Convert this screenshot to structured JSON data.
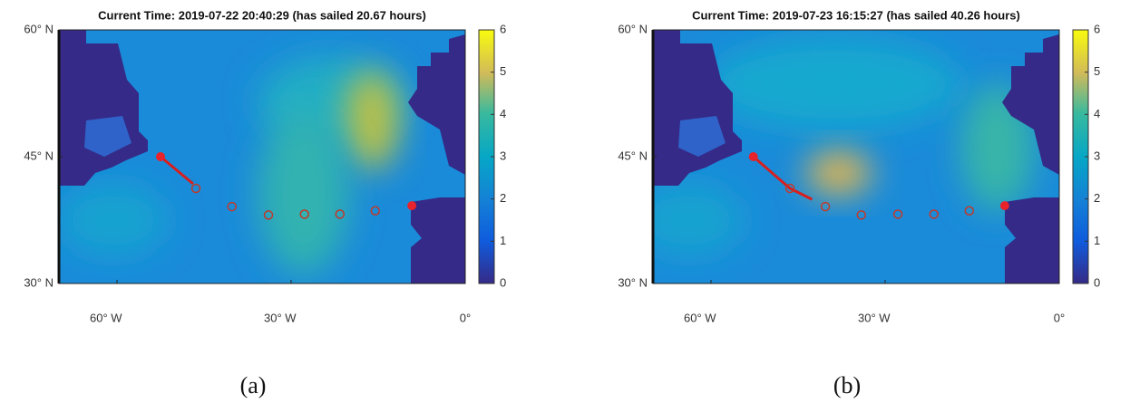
{
  "chart_data": [
    {
      "type": "route-map",
      "title": "Current Time: 2019-07-22 20:40:29 (has sailed 20.67 hours)",
      "xlim": [
        -70,
        0
      ],
      "ylim": [
        30,
        60
      ],
      "xticks": [
        {
          "value": -60,
          "label": "60° W"
        },
        {
          "value": -30,
          "label": "30° W"
        },
        {
          "value": 0,
          "label": "0°"
        }
      ],
      "yticks": [
        {
          "value": 30,
          "label": "30° N"
        },
        {
          "value": 45,
          "label": "45° N"
        },
        {
          "value": 60,
          "label": "60° N"
        }
      ],
      "clim": [
        0,
        6
      ],
      "cticks": [
        0,
        1,
        2,
        3,
        4,
        5,
        6
      ],
      "route": {
        "x": [
          -52.5,
          -46.4,
          -40.2,
          -33.9,
          -27.7,
          -21.6,
          -15.5,
          -9.2
        ],
        "y": [
          45,
          41.25,
          39.1,
          38.1,
          38.2,
          38.2,
          38.6,
          39.2
        ]
      },
      "sailed": {
        "x": [
          -52.5,
          -46.9
        ],
        "y": [
          45,
          41.8
        ]
      },
      "color": "#e8232b",
      "caption": "(a)"
    },
    {
      "type": "route-map",
      "title": "Current Time: 2019-07-23 16:15:27 (has sailed 40.26 hours)",
      "xlim": [
        -70,
        0
      ],
      "ylim": [
        30,
        60
      ],
      "xticks": [
        {
          "value": -60,
          "label": "60° W"
        },
        {
          "value": -30,
          "label": "30° W"
        },
        {
          "value": 0,
          "label": "0°"
        }
      ],
      "yticks": [
        {
          "value": 30,
          "label": "30° N"
        },
        {
          "value": 45,
          "label": "45° N"
        },
        {
          "value": 60,
          "label": "60° N"
        }
      ],
      "clim": [
        0,
        6
      ],
      "cticks": [
        0,
        1,
        2,
        3,
        4,
        5,
        6
      ],
      "route": {
        "x": [
          -52.7,
          -46.4,
          -40.3,
          -34.1,
          -27.8,
          -21.6,
          -15.5,
          -9.4
        ],
        "y": [
          45,
          41.25,
          39.1,
          38.1,
          38.2,
          38.2,
          38.6,
          39.2
        ]
      },
      "sailed": {
        "x": [
          -52.7,
          -46.4,
          -42.6
        ],
        "y": [
          45,
          41.25,
          39.95
        ]
      },
      "color": "#e8232b",
      "caption": "(b)"
    }
  ]
}
